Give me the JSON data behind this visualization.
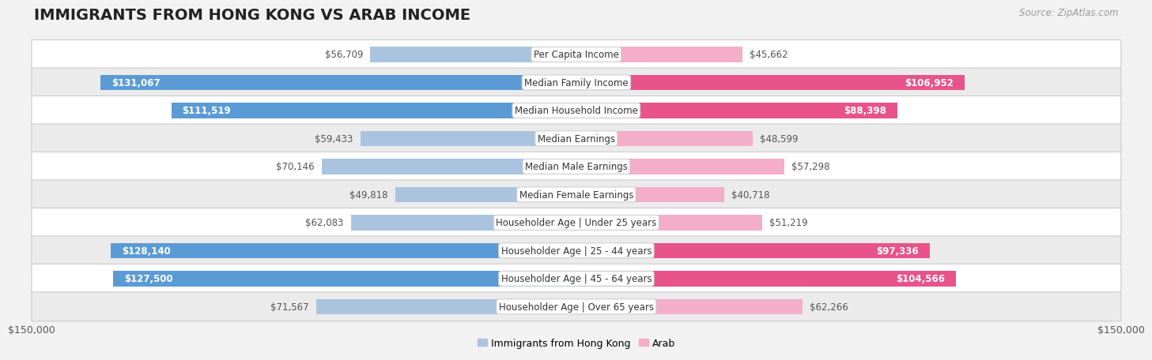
{
  "title": "IMMIGRANTS FROM HONG KONG VS ARAB INCOME",
  "source": "Source: ZipAtlas.com",
  "categories": [
    "Per Capita Income",
    "Median Family Income",
    "Median Household Income",
    "Median Earnings",
    "Median Male Earnings",
    "Median Female Earnings",
    "Householder Age | Under 25 years",
    "Householder Age | 25 - 44 years",
    "Householder Age | 45 - 64 years",
    "Householder Age | Over 65 years"
  ],
  "hk_values": [
    56709,
    131067,
    111519,
    59433,
    70146,
    49818,
    62083,
    128140,
    127500,
    71567
  ],
  "arab_values": [
    45662,
    106952,
    88398,
    48599,
    57298,
    40718,
    51219,
    97336,
    104566,
    62266
  ],
  "hk_labels": [
    "$56,709",
    "$131,067",
    "$111,519",
    "$59,433",
    "$70,146",
    "$49,818",
    "$62,083",
    "$128,140",
    "$127,500",
    "$71,567"
  ],
  "arab_labels": [
    "$45,662",
    "$106,952",
    "$88,398",
    "$48,599",
    "$57,298",
    "$40,718",
    "$51,219",
    "$97,336",
    "$104,566",
    "$62,266"
  ],
  "max_value": 150000,
  "hk_color_light": "#aac4e0",
  "hk_color_dark": "#5b9bd5",
  "arab_color_light": "#f4aec8",
  "arab_color_dark": "#e8538a",
  "background_color": "#f2f2f2",
  "row_bg_even": "#ffffff",
  "row_bg_odd": "#ebebeb",
  "label_box_color": "#ffffff",
  "label_box_border": "#cccccc",
  "xlabel_left": "$150,000",
  "xlabel_right": "$150,000",
  "legend_hk": "Immigrants from Hong Kong",
  "legend_arab": "Arab",
  "title_fontsize": 14,
  "source_fontsize": 8.5,
  "bar_label_fontsize": 8.5,
  "cat_label_fontsize": 8.5,
  "legend_fontsize": 9,
  "axis_label_fontsize": 9,
  "inner_label_threshold": 85000,
  "hk_inner_label_threshold": 85000,
  "arab_inner_label_threshold": 85000
}
